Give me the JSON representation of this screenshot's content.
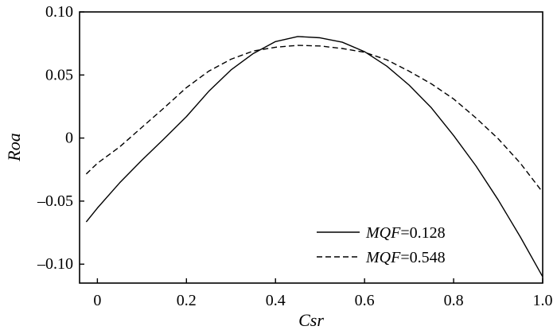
{
  "chart_data": {
    "type": "line",
    "title": "",
    "xlabel": "Csr",
    "ylabel": "Roa",
    "xlim": [
      -0.04,
      1.0
    ],
    "ylim": [
      -0.115,
      0.1
    ],
    "xticks": [
      {
        "value": 0,
        "label": "0"
      },
      {
        "value": 0.2,
        "label": "0.2"
      },
      {
        "value": 0.4,
        "label": "0.4"
      },
      {
        "value": 0.6,
        "label": "0.6"
      },
      {
        "value": 0.8,
        "label": "0.8"
      },
      {
        "value": 1.0,
        "label": "1.0"
      }
    ],
    "yticks": [
      {
        "value": 0.1,
        "label": "0.10"
      },
      {
        "value": 0.05,
        "label": "0.05"
      },
      {
        "value": 0,
        "label": "0"
      },
      {
        "value": -0.05,
        "label": "–0.05"
      },
      {
        "value": -0.1,
        "label": "–0.10"
      }
    ],
    "grid": false,
    "legend_position": "bottom-right",
    "series": [
      {
        "name_italic": "MQF",
        "name_value": "=0.128",
        "style": "solid",
        "color": "#000000",
        "x": [
          -0.025,
          0.0,
          0.05,
          0.1,
          0.15,
          0.2,
          0.25,
          0.3,
          0.35,
          0.4,
          0.45,
          0.5,
          0.55,
          0.6,
          0.65,
          0.7,
          0.75,
          0.8,
          0.85,
          0.9,
          0.95,
          1.0
        ],
        "y": [
          -0.0665,
          -0.0555,
          -0.0355,
          -0.0175,
          -0.0005,
          0.017,
          0.037,
          0.054,
          0.067,
          0.0765,
          0.0805,
          0.0795,
          0.076,
          0.0685,
          0.057,
          0.042,
          0.024,
          0.002,
          -0.022,
          -0.049,
          -0.0785,
          -0.11
        ]
      },
      {
        "name_italic": "MQF",
        "name_value": "=0.548",
        "style": "dashed",
        "color": "#000000",
        "x": [
          -0.025,
          0.0,
          0.05,
          0.1,
          0.15,
          0.2,
          0.25,
          0.3,
          0.35,
          0.4,
          0.45,
          0.5,
          0.55,
          0.6,
          0.65,
          0.7,
          0.75,
          0.8,
          0.85,
          0.9,
          0.95,
          1.0
        ],
        "y": [
          -0.0285,
          -0.02,
          -0.007,
          0.0085,
          0.024,
          0.04,
          0.053,
          0.0625,
          0.069,
          0.072,
          0.0735,
          0.073,
          0.071,
          0.068,
          0.062,
          0.053,
          0.043,
          0.031,
          0.016,
          -0.0005,
          -0.02,
          -0.043
        ]
      }
    ]
  }
}
